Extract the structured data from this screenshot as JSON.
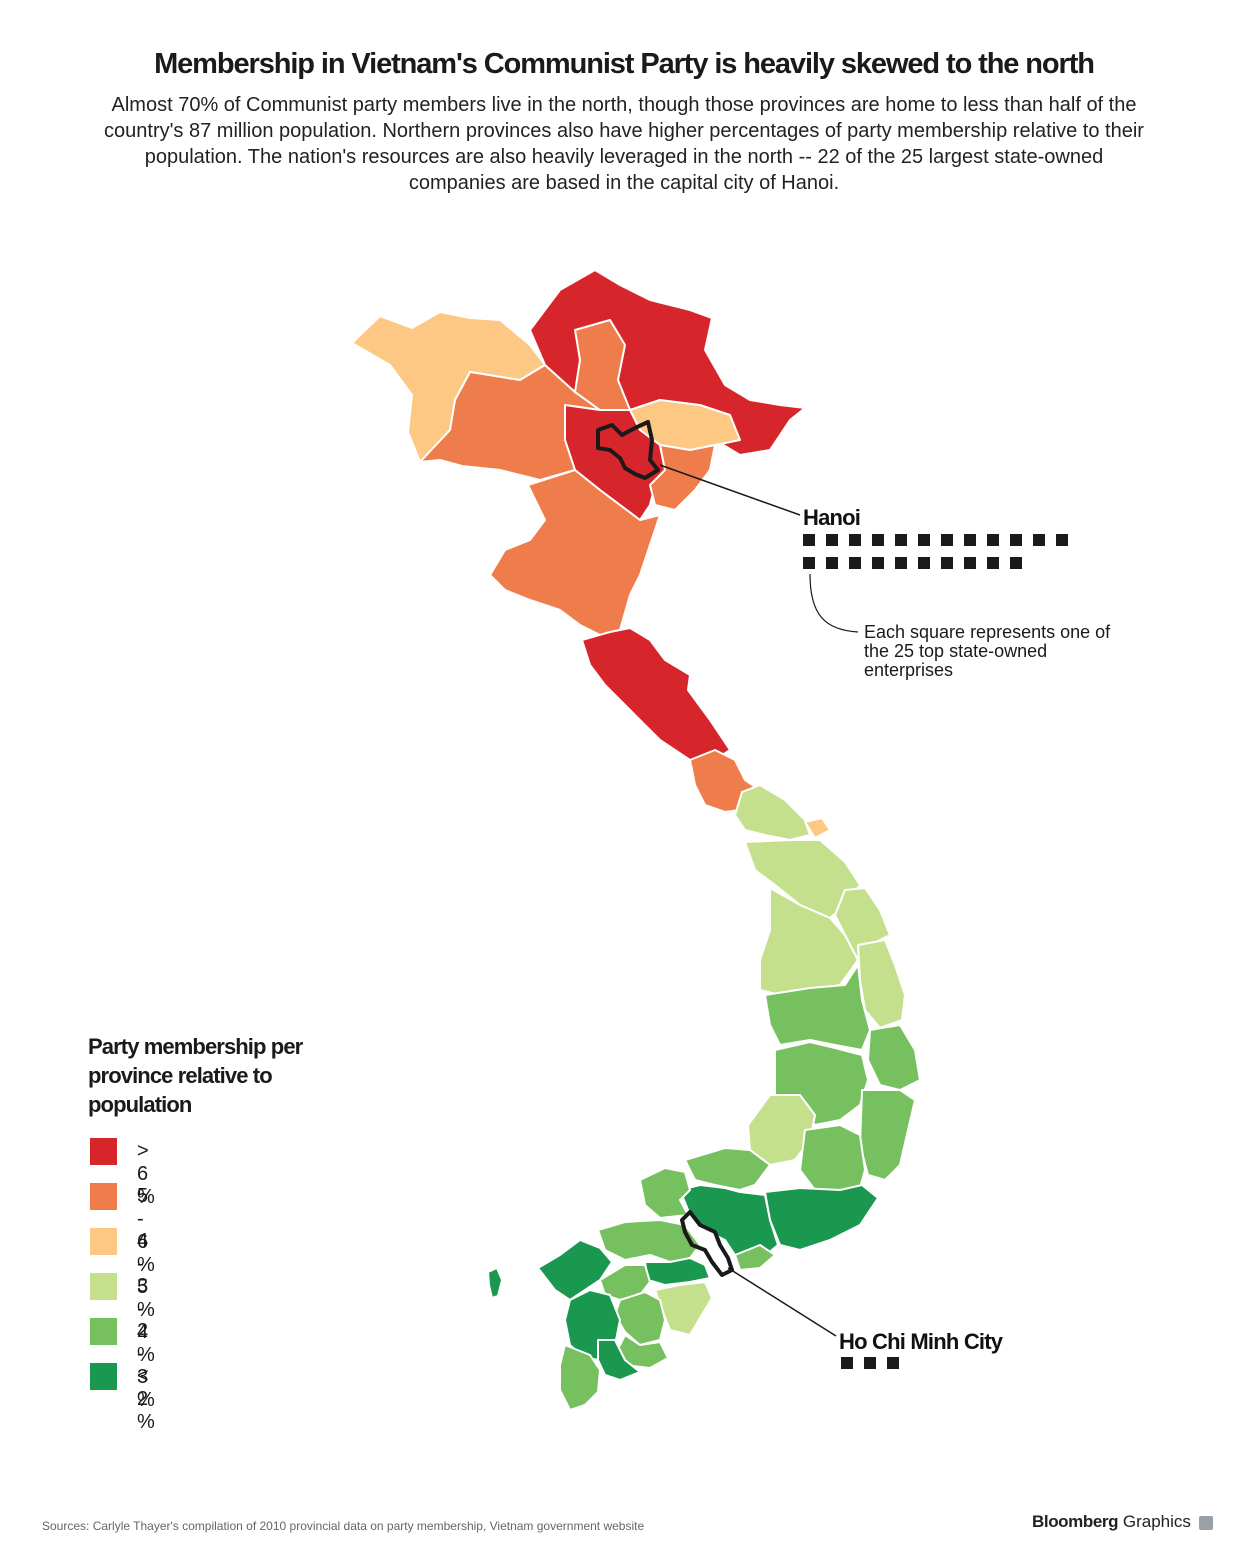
{
  "title": "Membership in Vietnam's Communist Party is heavily skewed to the north",
  "subtitle": "Almost 70% of Communist party members live in the north, though those provinces are home to less than half of the country's 87 million population. Northern provinces also have higher percentages of party membership relative to their population. The nation's resources are also heavily leveraged in the north -- 22 of the 25 largest state-owned companies are based in the capital city of Hanoi.",
  "legend": {
    "title": "Party membership per province relative to population",
    "items": [
      {
        "label": "> 6 %",
        "color": "#d7262b"
      },
      {
        "label": "5 - 6 %",
        "color": "#ef7d4c"
      },
      {
        "label": "4 - 5 %",
        "color": "#fdc884"
      },
      {
        "label": "3 - 4 %",
        "color": "#c5e08d"
      },
      {
        "label": "2 - 3 %",
        "color": "#77c05f"
      },
      {
        "label": "< 2 %",
        "color": "#1a9850"
      }
    ]
  },
  "cities": {
    "hanoi": {
      "label": "Hanoi",
      "enterprise_count": 22
    },
    "hcmc": {
      "label": "Ho Chi Minh City",
      "enterprise_count": 3
    }
  },
  "note": "Each square represents one of the 25 top state-owned enterprises",
  "source": "Sources: Carlyle Thayer's compilation of 2010 provincial data on party membership, Vietnam government website",
  "brand": {
    "name": "Bloomberg",
    "suffix": "Graphics"
  }
}
